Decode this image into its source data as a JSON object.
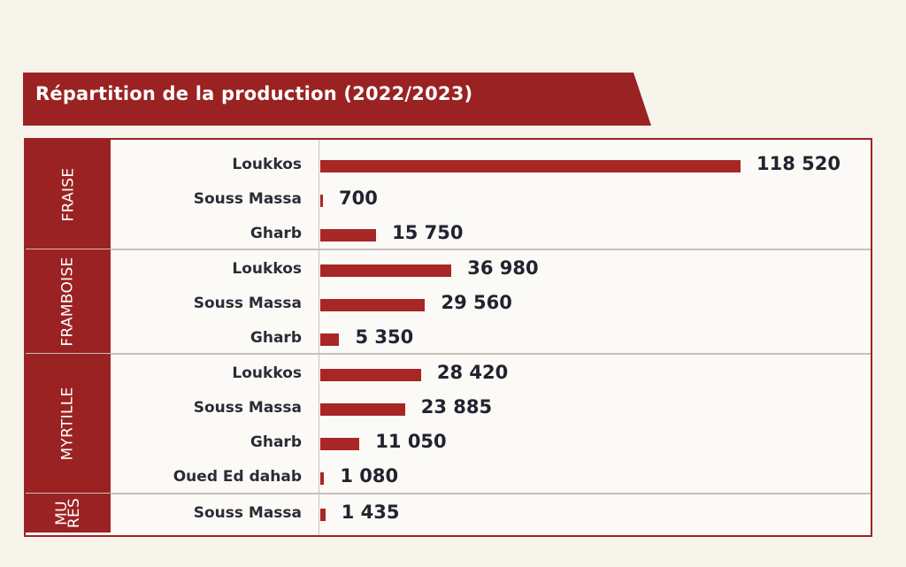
{
  "chart_data": {
    "type": "bar",
    "orientation": "horizontal",
    "title": "Répartition de la production (2022/2023)",
    "groups": [
      {
        "name": "FRAISE",
        "rows": [
          {
            "category": "Loukkos",
            "value": 118520,
            "value_label": "118 520"
          },
          {
            "category": "Souss Massa",
            "value": 700,
            "value_label": "700"
          },
          {
            "category": "Gharb",
            "value": 15750,
            "value_label": "15 750"
          }
        ]
      },
      {
        "name": "FRAMBOISE",
        "rows": [
          {
            "category": "Loukkos",
            "value": 36980,
            "value_label": "36 980"
          },
          {
            "category": "Souss Massa",
            "value": 29560,
            "value_label": "29 560"
          },
          {
            "category": "Gharb",
            "value": 5350,
            "value_label": "5 350"
          }
        ]
      },
      {
        "name": "MYRTILLE",
        "rows": [
          {
            "category": "Loukkos",
            "value": 28420,
            "value_label": "28 420"
          },
          {
            "category": "Souss Massa",
            "value": 23885,
            "value_label": "23 885"
          },
          {
            "category": "Gharb",
            "value": 11050,
            "value_label": "11 050"
          },
          {
            "category": "Oued Ed dahab",
            "value": 1080,
            "value_label": "1 080"
          }
        ]
      },
      {
        "name": "MU\nRES",
        "rows": [
          {
            "category": "Souss Massa",
            "value": 1435,
            "value_label": "1 435"
          }
        ]
      }
    ],
    "grid": true,
    "legend": "none"
  },
  "colors": {
    "accent": "#9b2222",
    "bar": "#a82626",
    "text": "#2e2a36",
    "background": "#f7f4ec"
  }
}
